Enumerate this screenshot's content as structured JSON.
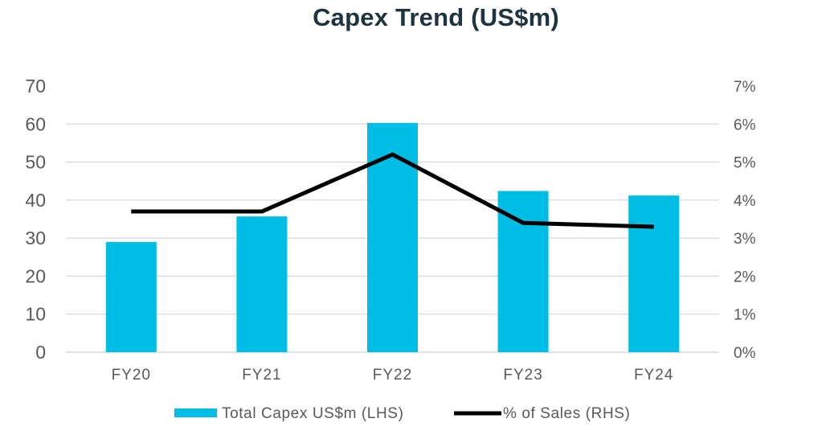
{
  "title": "Capex Trend (US$m)",
  "chart_data": {
    "type": "bar",
    "title": "Capex Trend (US$m)",
    "categories": [
      "FY20",
      "FY21",
      "FY22",
      "FY23",
      "FY24"
    ],
    "series": [
      {
        "name": "Total Capex US$m (LHS)",
        "type": "bar",
        "axis": "left",
        "values": [
          29,
          35.7,
          60.3,
          42.4,
          41.2
        ],
        "color": "#00bde6"
      },
      {
        "name": "% of Sales (RHS)",
        "type": "line",
        "axis": "right",
        "values": [
          3.7,
          3.7,
          5.2,
          3.4,
          3.3
        ],
        "color": "#000000"
      }
    ],
    "ylim_left": [
      0,
      70
    ],
    "yticks_left": [
      "0",
      "10",
      "20",
      "30",
      "40",
      "50",
      "60",
      "70"
    ],
    "ylim_right": [
      0,
      7
    ],
    "yticks_right": [
      "0%",
      "1%",
      "2%",
      "3%",
      "4%",
      "5%",
      "6%",
      "7%"
    ],
    "grid": true,
    "legend_position": "bottom"
  }
}
